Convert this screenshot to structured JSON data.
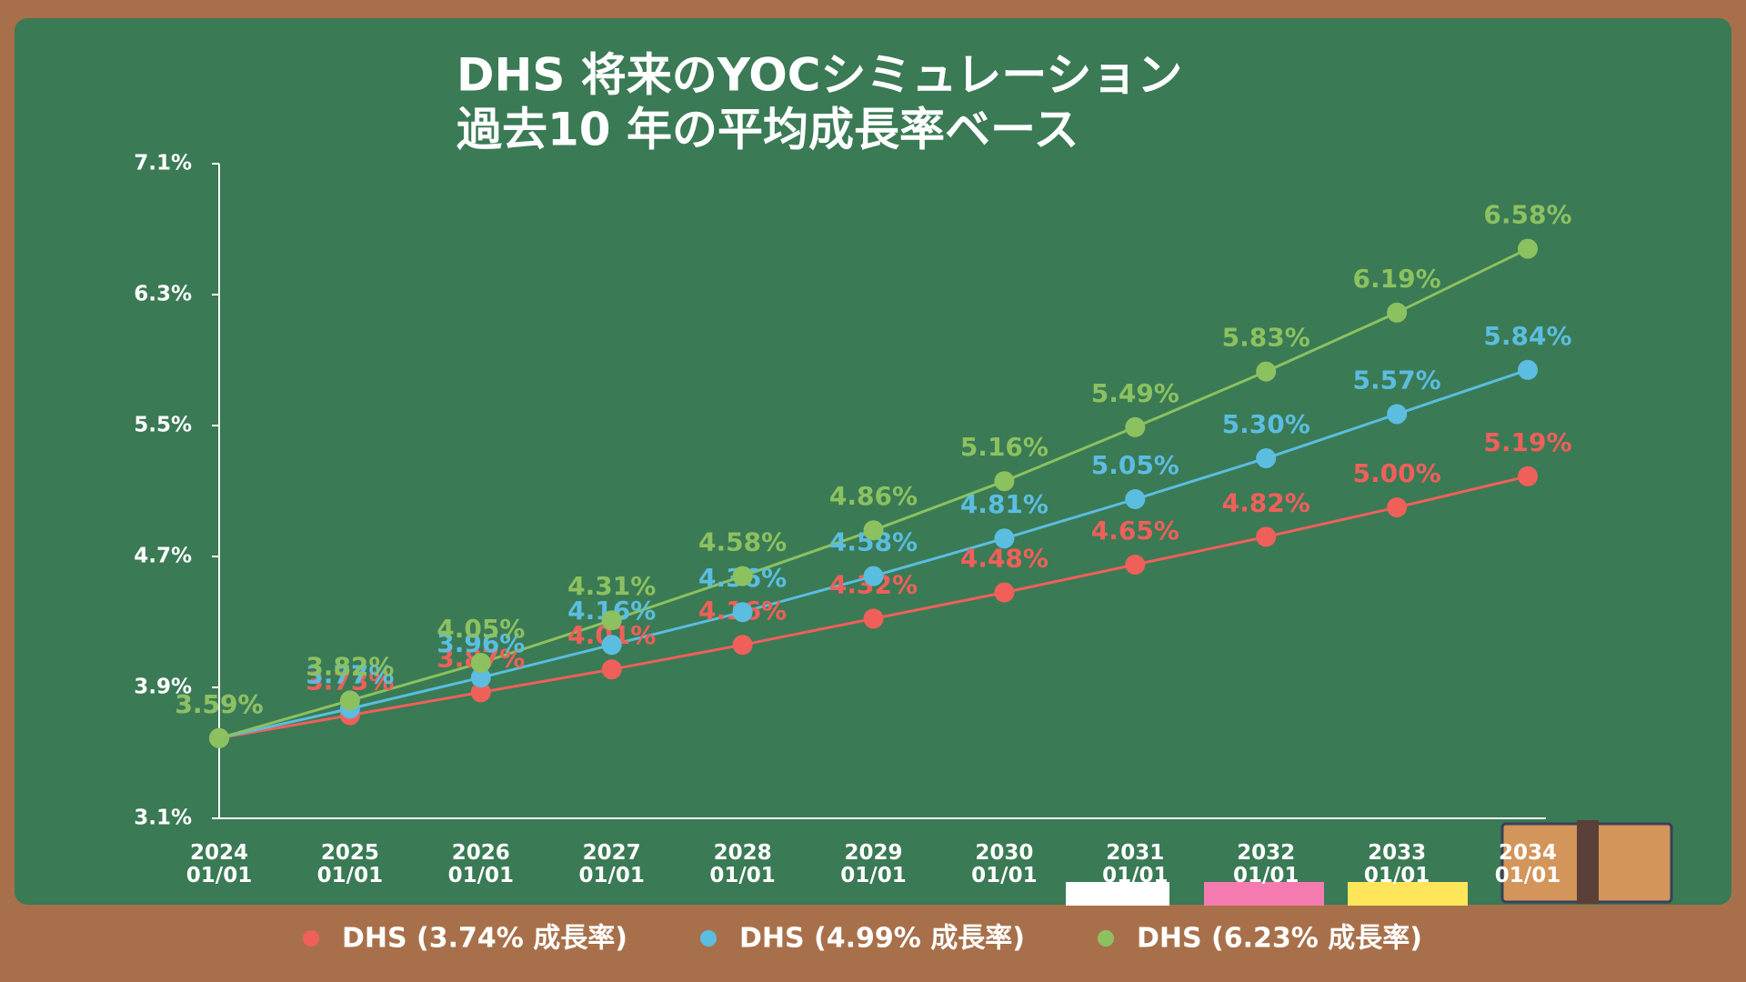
{
  "chart_data": {
    "type": "line",
    "title": "DHS 将来のYOCシミュレーション",
    "subtitle": "過去10 年の平均成長率ベース",
    "categories": [
      "2024\n01/01",
      "2025\n01/01",
      "2026\n01/01",
      "2027\n01/01",
      "2028\n01/01",
      "2029\n01/01",
      "2030\n01/01",
      "2031\n01/01",
      "2032\n01/01",
      "2033\n01/01",
      "2034\n01/01"
    ],
    "series": [
      {
        "name": "DHS (3.74% 成長率)",
        "color": "#f0605a",
        "values": [
          3.59,
          3.73,
          3.87,
          4.01,
          4.16,
          4.32,
          4.48,
          4.65,
          4.82,
          5.0,
          5.19
        ],
        "value_labels": [
          "3.59%",
          "3.73%",
          "3.87%",
          "4.01%",
          "4.16%",
          "4.32%",
          "4.48%",
          "4.65%",
          "4.82%",
          "5.00%",
          "5.19%"
        ]
      },
      {
        "name": "DHS (4.99% 成長率)",
        "color": "#5bbde0",
        "values": [
          3.59,
          3.77,
          3.96,
          4.16,
          4.36,
          4.58,
          4.81,
          5.05,
          5.3,
          5.57,
          5.84
        ],
        "value_labels": [
          "3.59%",
          "3.77%",
          "3.96%",
          "4.16%",
          "4.36%",
          "4.58%",
          "4.81%",
          "5.05%",
          "5.30%",
          "5.57%",
          "5.84%"
        ]
      },
      {
        "name": "DHS (6.23% 成長率)",
        "color": "#8cc160",
        "values": [
          3.59,
          3.82,
          4.05,
          4.31,
          4.58,
          4.86,
          5.16,
          5.49,
          5.83,
          6.19,
          6.58
        ],
        "value_labels": [
          "3.59%",
          "3.82%",
          "4.05%",
          "4.31%",
          "4.58%",
          "4.86%",
          "5.16%",
          "5.49%",
          "5.83%",
          "6.19%",
          "6.58%"
        ]
      }
    ],
    "ylim": [
      3.1,
      7.1
    ],
    "yticks": [
      {
        "value": 3.1,
        "label": "3.1%"
      },
      {
        "value": 3.9,
        "label": "3.9%"
      },
      {
        "value": 4.7,
        "label": "4.7%"
      },
      {
        "value": 5.5,
        "label": "5.5%"
      },
      {
        "value": 6.3,
        "label": "6.3%"
      },
      {
        "value": 7.1,
        "label": "7.1%"
      }
    ],
    "legend": "bottom"
  }
}
